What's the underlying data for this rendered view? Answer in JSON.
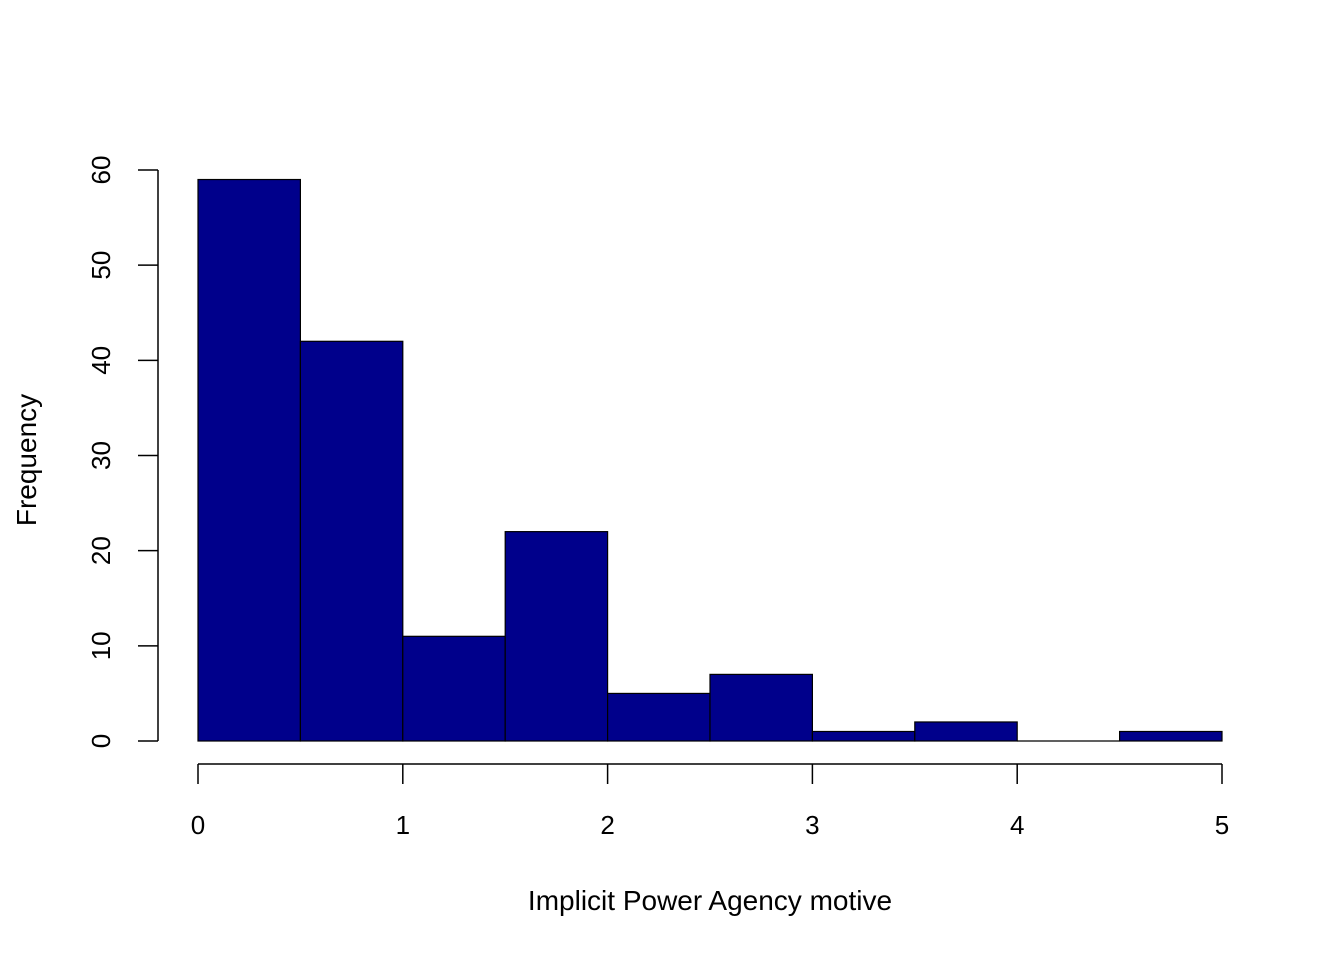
{
  "chart_data": {
    "type": "bar",
    "subtype": "histogram",
    "title": "",
    "xlabel": "Implicit Power Agency motive",
    "ylabel": "Frequency",
    "bins": [
      {
        "start": 0.0,
        "end": 0.5,
        "count": 59
      },
      {
        "start": 0.5,
        "end": 1.0,
        "count": 42
      },
      {
        "start": 1.0,
        "end": 1.5,
        "count": 11
      },
      {
        "start": 1.5,
        "end": 2.0,
        "count": 22
      },
      {
        "start": 2.0,
        "end": 2.5,
        "count": 5
      },
      {
        "start": 2.5,
        "end": 3.0,
        "count": 7
      },
      {
        "start": 3.0,
        "end": 3.5,
        "count": 1
      },
      {
        "start": 3.5,
        "end": 4.0,
        "count": 2
      },
      {
        "start": 4.0,
        "end": 4.5,
        "count": 0
      },
      {
        "start": 4.5,
        "end": 5.0,
        "count": 1
      }
    ],
    "xlim": [
      0,
      5
    ],
    "ylim": [
      0,
      60
    ],
    "xticks": [
      0,
      1,
      2,
      3,
      4,
      5
    ],
    "yticks": [
      0,
      10,
      20,
      30,
      40,
      50,
      60
    ],
    "bar_color": "#00008B",
    "bar_edge_color": "#000000",
    "grid": false,
    "legend": "none"
  }
}
